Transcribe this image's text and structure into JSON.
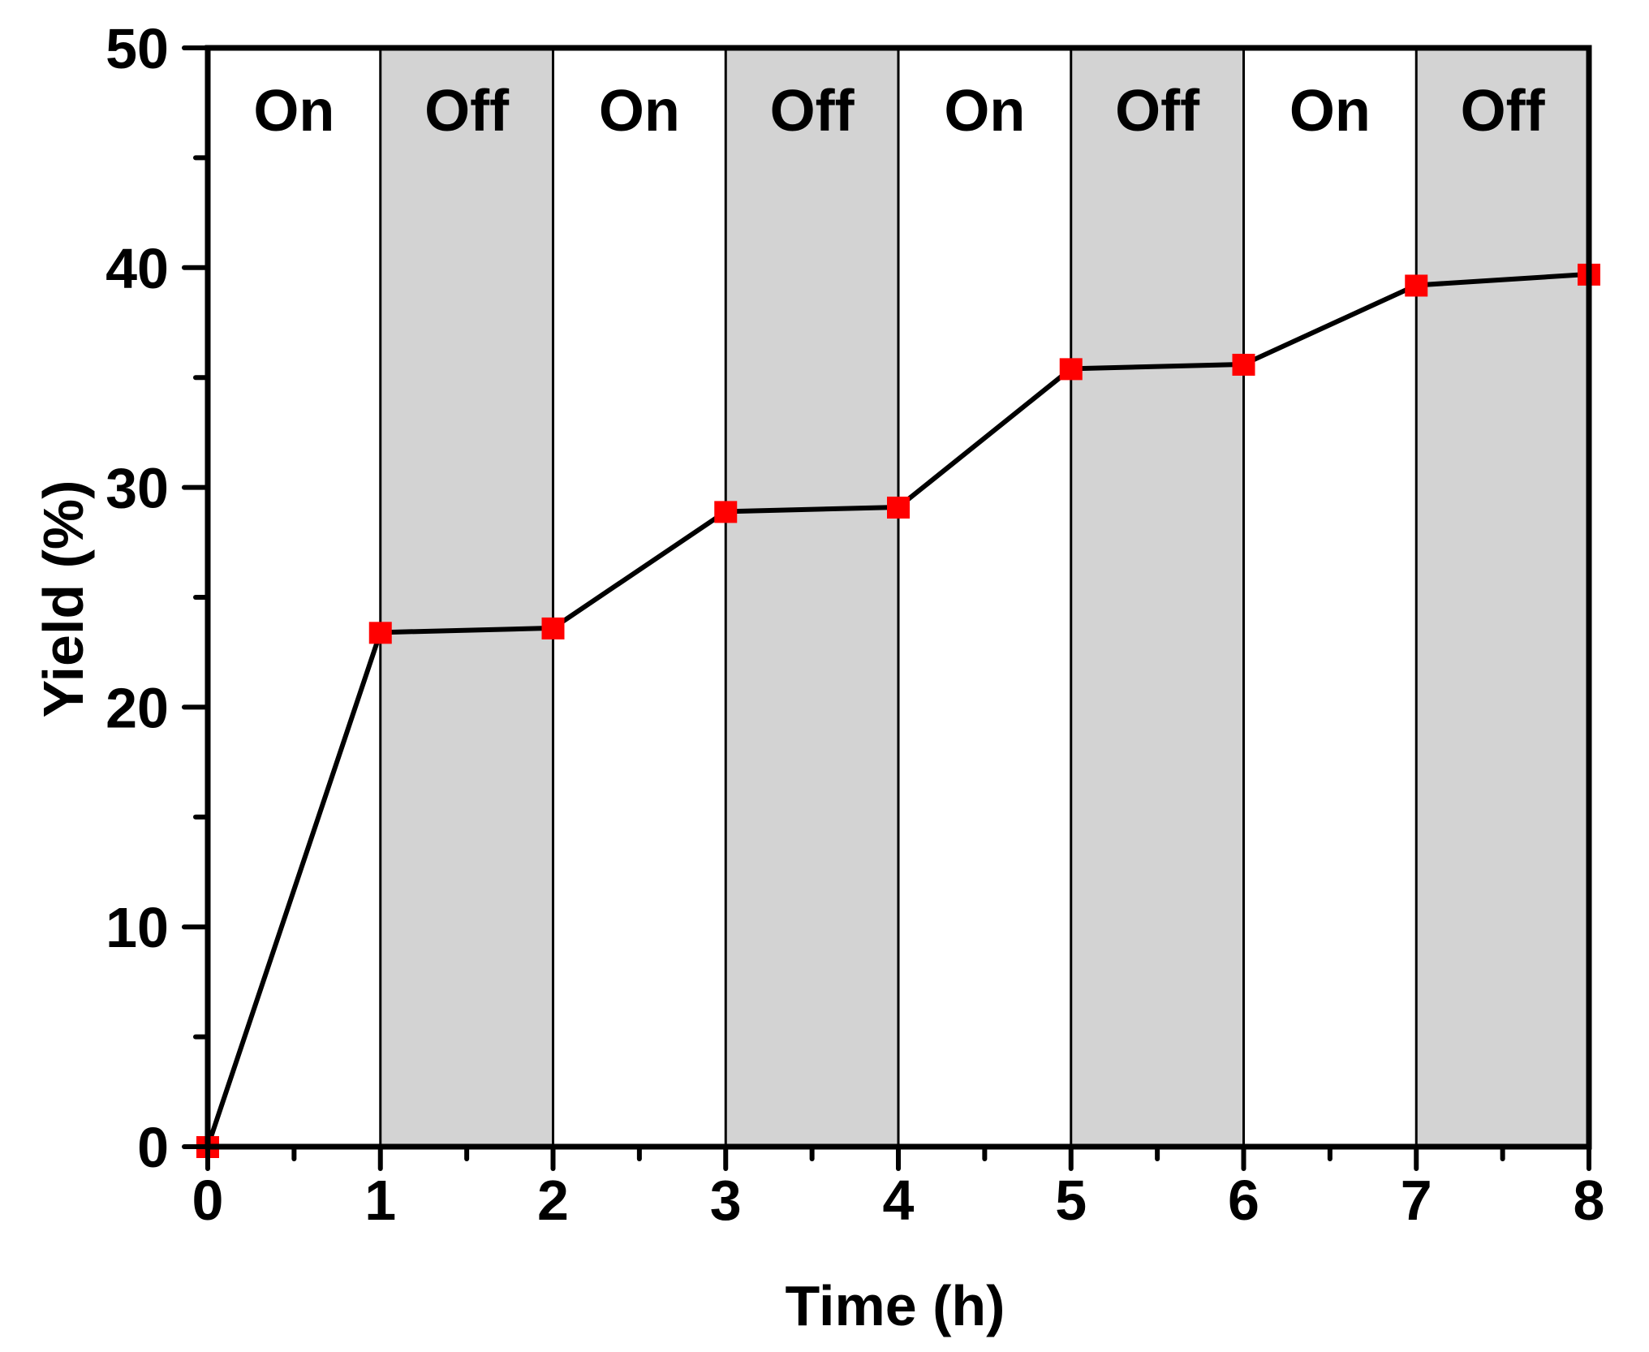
{
  "chart_data": {
    "type": "line",
    "title": "",
    "xlabel": "Time (h)",
    "ylabel": "Yield (%)",
    "xlim": [
      0,
      8
    ],
    "ylim": [
      0,
      50
    ],
    "x_ticks": [
      0,
      1,
      2,
      3,
      4,
      5,
      6,
      7,
      8
    ],
    "x_tick_labels": [
      "0",
      "1",
      "2",
      "3",
      "4",
      "5",
      "6",
      "7",
      "8"
    ],
    "y_ticks": [
      0,
      10,
      20,
      30,
      40,
      50
    ],
    "y_tick_labels": [
      "0",
      "10",
      "20",
      "30",
      "40",
      "50"
    ],
    "x_minor_step": 0.5,
    "y_minor_step": 5,
    "grid": false,
    "legend": null,
    "series": [
      {
        "name": "Yield",
        "x": [
          0,
          1,
          2,
          3,
          4,
          5,
          6,
          7,
          8
        ],
        "values": [
          0,
          23.4,
          23.6,
          28.9,
          29.1,
          35.4,
          35.6,
          39.2,
          39.7
        ],
        "line_color": "#000000",
        "marker": "square",
        "marker_color": "#ff0000"
      }
    ],
    "annotations": {
      "phases": [
        {
          "start": 0,
          "end": 1,
          "label": "On",
          "shaded": false
        },
        {
          "start": 1,
          "end": 2,
          "label": "Off",
          "shaded": true
        },
        {
          "start": 2,
          "end": 3,
          "label": "On",
          "shaded": false
        },
        {
          "start": 3,
          "end": 4,
          "label": "Off",
          "shaded": true
        },
        {
          "start": 4,
          "end": 5,
          "label": "On",
          "shaded": false
        },
        {
          "start": 5,
          "end": 6,
          "label": "Off",
          "shaded": true
        },
        {
          "start": 6,
          "end": 7,
          "label": "On",
          "shaded": false
        },
        {
          "start": 7,
          "end": 8,
          "label": "Off",
          "shaded": true
        }
      ],
      "shade_color": "#d3d3d3"
    }
  }
}
